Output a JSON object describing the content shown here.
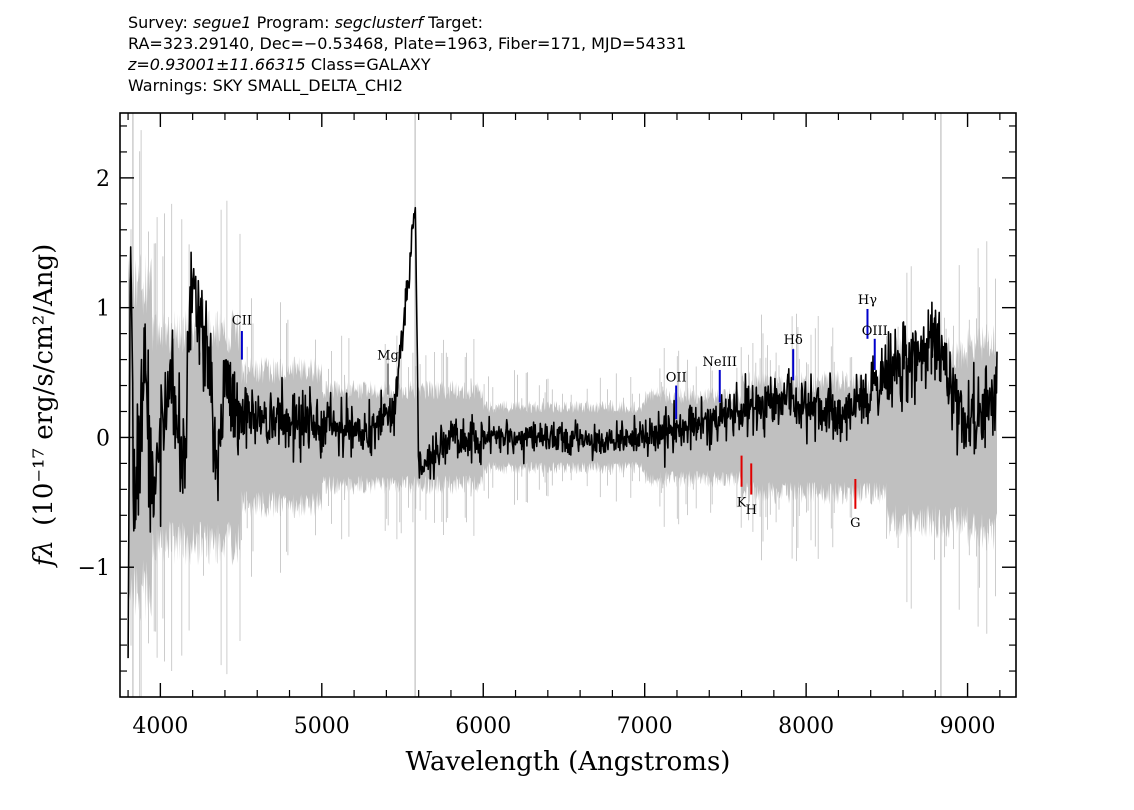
{
  "header": {
    "survey_label": "Survey:",
    "survey": "segue1",
    "program_label": "Program:",
    "program": "segclusterf",
    "target_label": "Target:",
    "line2": "RA=323.29140, Dec=−0.53468, Plate=1963, Fiber=171, MJD=54331",
    "redshift": "z=0.93001±11.66315",
    "class_text": "Class=GALAXY",
    "warnings": "Warnings: SKY SMALL_DELTA_CHI2"
  },
  "chart_data": {
    "type": "line",
    "xlabel": "Wavelength (Angstroms)",
    "ylabel_text": "(10⁻¹⁷ erg/s/cm²/Ang)",
    "ylabel_symbol": "fλ",
    "xlim": [
      3750,
      9300
    ],
    "ylim": [
      -2.0,
      2.5
    ],
    "xticks": [
      4000,
      5000,
      6000,
      7000,
      8000,
      9000
    ],
    "xtick_labels": [
      "4000",
      "5000",
      "6000",
      "7000",
      "8000",
      "9000"
    ],
    "yticks": [
      -1,
      0,
      1,
      2
    ],
    "ytick_labels": [
      "−1",
      "0",
      "1",
      "2"
    ],
    "colors": {
      "flux": "#000000",
      "error_band": "#c0c0c0",
      "emission": "#0000cc",
      "absorption": "#e00000",
      "mg": "#888888"
    },
    "series": [
      {
        "role": "flux",
        "anchor_points": [
          [
            3800,
            -1.7
          ],
          [
            3815,
            1.55
          ],
          [
            3840,
            -0.5
          ],
          [
            3900,
            0.6
          ],
          [
            3960,
            -0.45
          ],
          [
            4050,
            0.5
          ],
          [
            4150,
            -0.3
          ],
          [
            4190,
            1.25
          ],
          [
            4300,
            0.6
          ],
          [
            4350,
            -0.35
          ],
          [
            4400,
            0.45
          ],
          [
            4500,
            0.2
          ],
          [
            4700,
            0.1
          ],
          [
            5000,
            0.12
          ],
          [
            5300,
            0.05
          ],
          [
            5450,
            0.2
          ],
          [
            5580,
            1.78
          ],
          [
            5600,
            -0.3
          ],
          [
            5800,
            0.02
          ],
          [
            6200,
            0.0
          ],
          [
            6600,
            -0.02
          ],
          [
            7000,
            0.0
          ],
          [
            7300,
            0.1
          ],
          [
            7600,
            0.2
          ],
          [
            7900,
            0.3
          ],
          [
            8200,
            0.15
          ],
          [
            8800,
            0.8
          ],
          [
            9000,
            0.1
          ],
          [
            9180,
            0.35
          ]
        ]
      }
    ],
    "spectral_lines": [
      {
        "label": "CII",
        "wavelength": 4505,
        "kind": "emission",
        "y_from": 0.6,
        "y_to": 0.82,
        "label_y": 0.9
      },
      {
        "label": "Mg",
        "wavelength": 5410,
        "kind": "mg",
        "y_from": 0.33,
        "y_to": 0.57,
        "label_y": 0.63
      },
      {
        "label": "OII",
        "wavelength": 7195,
        "kind": "emission",
        "y_from": 0.14,
        "y_to": 0.4,
        "label_y": 0.46
      },
      {
        "label": "NeIII",
        "wavelength": 7465,
        "kind": "emission",
        "y_from": 0.27,
        "y_to": 0.52,
        "label_y": 0.58
      },
      {
        "label": "Hδ",
        "wavelength": 7920,
        "kind": "emission",
        "y_from": 0.44,
        "y_to": 0.68,
        "label_y": 0.75
      },
      {
        "label": "Hγ",
        "wavelength": 8380,
        "kind": "emission",
        "y_from": 0.76,
        "y_to": 0.99,
        "label_y": 1.06
      },
      {
        "label": "OIII",
        "wavelength": 8425,
        "kind": "emission",
        "y_from": 0.52,
        "y_to": 0.76,
        "label_y": 0.82
      },
      {
        "label": "K",
        "wavelength": 7600,
        "kind": "absorption",
        "y_from": -0.38,
        "y_to": -0.14,
        "label_y": -0.5
      },
      {
        "label": "H",
        "wavelength": 7660,
        "kind": "absorption",
        "y_from": -0.44,
        "y_to": -0.2,
        "label_y": -0.56
      },
      {
        "label": "G",
        "wavelength": 8305,
        "kind": "absorption",
        "y_from": -0.55,
        "y_to": -0.32,
        "label_y": -0.66
      }
    ]
  }
}
